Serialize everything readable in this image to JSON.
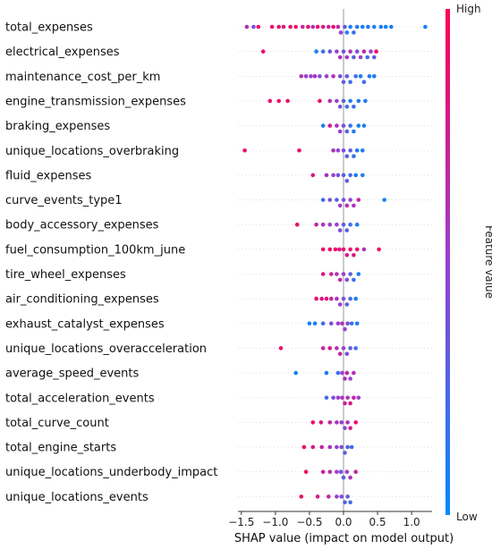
{
  "chart_data": {
    "type": "scatter",
    "subtype": "shap-beeswarm",
    "xlabel": "SHAP value (impact on model output)",
    "xlim": [
      -1.55,
      1.3
    ],
    "xticks": [
      -1.5,
      -1.0,
      -0.5,
      0.0,
      0.5,
      1.0
    ],
    "xtick_labels": [
      "−1.5",
      "−1.0",
      "−0.5",
      "0.0",
      "0.5",
      "1.0"
    ],
    "colorbar": {
      "title": "Feature value",
      "high_label": "High",
      "low_label": "Low",
      "high_color": "#ff0052",
      "low_color": "#008bfb"
    },
    "features": [
      {
        "name": "total_expenses",
        "points": [
          [
            -1.42,
            0.6
          ],
          [
            -1.32,
            0.4
          ],
          [
            -1.25,
            0.9
          ],
          [
            -1.05,
            0.9
          ],
          [
            -0.95,
            0.9
          ],
          [
            -0.88,
            0.8
          ],
          [
            -0.78,
            0.9
          ],
          [
            -0.7,
            0.9
          ],
          [
            -0.6,
            0.7
          ],
          [
            -0.52,
            0.9
          ],
          [
            -0.45,
            0.6
          ],
          [
            -0.38,
            0.9
          ],
          [
            -0.3,
            0.8
          ],
          [
            -0.22,
            0.7
          ],
          [
            -0.15,
            0.9
          ],
          [
            -0.08,
            0.7
          ],
          [
            -0.04,
            0.5
          ],
          [
            0.02,
            0.3
          ],
          [
            0.05,
            0.1
          ],
          [
            0.1,
            0.1
          ],
          [
            0.15,
            0.2
          ],
          [
            0.2,
            0.1
          ],
          [
            0.28,
            0.1
          ],
          [
            0.36,
            0.1
          ],
          [
            0.45,
            0.1
          ],
          [
            0.55,
            0.1
          ],
          [
            0.62,
            0.05
          ],
          [
            0.7,
            0.1
          ],
          [
            1.2,
            0.05
          ]
        ]
      },
      {
        "name": "electrical_expenses",
        "points": [
          [
            -1.18,
            0.9
          ],
          [
            -0.4,
            0.1
          ],
          [
            -0.3,
            0.2
          ],
          [
            -0.2,
            0.3
          ],
          [
            -0.1,
            0.5
          ],
          [
            -0.05,
            0.6
          ],
          [
            0.0,
            0.4
          ],
          [
            0.05,
            0.5
          ],
          [
            0.1,
            0.6
          ],
          [
            0.15,
            0.3
          ],
          [
            0.2,
            0.4
          ],
          [
            0.25,
            0.5
          ],
          [
            0.3,
            0.7
          ],
          [
            0.35,
            0.2
          ],
          [
            0.4,
            0.5
          ],
          [
            0.45,
            0.3
          ],
          [
            0.48,
            0.9
          ]
        ]
      },
      {
        "name": "maintenance_cost_per_km",
        "points": [
          [
            -0.62,
            0.6
          ],
          [
            -0.55,
            0.5
          ],
          [
            -0.48,
            0.5
          ],
          [
            -0.42,
            0.6
          ],
          [
            -0.35,
            0.4
          ],
          [
            -0.25,
            0.5
          ],
          [
            -0.15,
            0.6
          ],
          [
            -0.05,
            0.4
          ],
          [
            0.0,
            0.3
          ],
          [
            0.05,
            0.3
          ],
          [
            0.1,
            0.2
          ],
          [
            0.18,
            0.2
          ],
          [
            0.25,
            0.1
          ],
          [
            0.3,
            0.2
          ],
          [
            0.38,
            0.1
          ],
          [
            0.45,
            0.1
          ]
        ]
      },
      {
        "name": "engine_transmission_expenses",
        "points": [
          [
            -1.08,
            0.9
          ],
          [
            -0.95,
            0.9
          ],
          [
            -0.82,
            0.9
          ],
          [
            -0.35,
            0.9
          ],
          [
            -0.2,
            0.6
          ],
          [
            -0.1,
            0.5
          ],
          [
            -0.05,
            0.4
          ],
          [
            0.0,
            0.3
          ],
          [
            0.05,
            0.2
          ],
          [
            0.1,
            0.1
          ],
          [
            0.15,
            0.2
          ],
          [
            0.22,
            0.1
          ],
          [
            0.32,
            0.1
          ]
        ]
      },
      {
        "name": "braking_expenses",
        "points": [
          [
            -0.3,
            0.1
          ],
          [
            -0.2,
            0.8
          ],
          [
            -0.1,
            0.6
          ],
          [
            -0.05,
            0.5
          ],
          [
            0.0,
            0.4
          ],
          [
            0.05,
            0.3
          ],
          [
            0.1,
            0.2
          ],
          [
            0.15,
            0.1
          ],
          [
            0.22,
            0.1
          ],
          [
            0.3,
            0.1
          ]
        ]
      },
      {
        "name": "unique_locations_overbraking",
        "points": [
          [
            -1.45,
            0.9
          ],
          [
            -0.65,
            0.9
          ],
          [
            -0.15,
            0.6
          ],
          [
            -0.08,
            0.5
          ],
          [
            0.0,
            0.4
          ],
          [
            0.05,
            0.3
          ],
          [
            0.1,
            0.3
          ],
          [
            0.15,
            0.2
          ],
          [
            0.2,
            0.1
          ],
          [
            0.28,
            0.1
          ]
        ]
      },
      {
        "name": "fluid_expenses",
        "points": [
          [
            -0.45,
            0.8
          ],
          [
            -0.25,
            0.6
          ],
          [
            -0.15,
            0.5
          ],
          [
            -0.08,
            0.4
          ],
          [
            0.0,
            0.3
          ],
          [
            0.05,
            0.3
          ],
          [
            0.1,
            0.2
          ],
          [
            0.18,
            0.1
          ],
          [
            0.28,
            0.1
          ]
        ]
      },
      {
        "name": "curve_events_type1",
        "points": [
          [
            -0.3,
            0.2
          ],
          [
            -0.2,
            0.4
          ],
          [
            -0.1,
            0.3
          ],
          [
            -0.05,
            0.5
          ],
          [
            0.0,
            0.4
          ],
          [
            0.05,
            0.6
          ],
          [
            0.1,
            0.5
          ],
          [
            0.15,
            0.6
          ],
          [
            0.22,
            0.7
          ],
          [
            0.6,
            0.05
          ]
        ]
      },
      {
        "name": "body_accessory_expenses",
        "points": [
          [
            -0.68,
            0.9
          ],
          [
            -0.4,
            0.7
          ],
          [
            -0.3,
            0.6
          ],
          [
            -0.2,
            0.5
          ],
          [
            -0.1,
            0.5
          ],
          [
            -0.05,
            0.4
          ],
          [
            0.0,
            0.3
          ],
          [
            0.05,
            0.3
          ],
          [
            0.1,
            0.2
          ],
          [
            0.2,
            0.1
          ]
        ]
      },
      {
        "name": "fuel_consumption_100km_june",
        "points": [
          [
            -0.3,
            0.9
          ],
          [
            -0.2,
            0.9
          ],
          [
            -0.12,
            0.9
          ],
          [
            -0.06,
            0.8
          ],
          [
            0.0,
            0.9
          ],
          [
            0.05,
            0.8
          ],
          [
            0.1,
            0.9
          ],
          [
            0.15,
            0.8
          ],
          [
            0.2,
            0.9
          ],
          [
            0.3,
            0.6
          ],
          [
            0.52,
            0.9
          ]
        ]
      },
      {
        "name": "tire_wheel_expenses",
        "points": [
          [
            -0.3,
            0.8
          ],
          [
            -0.18,
            0.7
          ],
          [
            -0.1,
            0.6
          ],
          [
            -0.05,
            0.7
          ],
          [
            0.0,
            0.5
          ],
          [
            0.05,
            0.4
          ],
          [
            0.1,
            0.3
          ],
          [
            0.15,
            0.2
          ],
          [
            0.22,
            0.1
          ]
        ]
      },
      {
        "name": "air_conditioning_expenses",
        "points": [
          [
            -0.4,
            0.9
          ],
          [
            -0.32,
            0.8
          ],
          [
            -0.25,
            0.9
          ],
          [
            -0.18,
            0.7
          ],
          [
            -0.1,
            0.6
          ],
          [
            -0.05,
            0.5
          ],
          [
            0.0,
            0.4
          ],
          [
            0.05,
            0.3
          ],
          [
            0.1,
            0.2
          ],
          [
            0.18,
            0.1
          ]
        ]
      },
      {
        "name": "exhaust_catalyst_expenses",
        "points": [
          [
            -0.5,
            0.05
          ],
          [
            -0.42,
            0.1
          ],
          [
            -0.3,
            0.2
          ],
          [
            -0.18,
            0.4
          ],
          [
            -0.08,
            0.5
          ],
          [
            -0.02,
            0.6
          ],
          [
            0.02,
            0.5
          ],
          [
            0.06,
            0.4
          ],
          [
            0.12,
            0.2
          ],
          [
            0.2,
            0.1
          ]
        ]
      },
      {
        "name": "unique_locations_overacceleration",
        "points": [
          [
            -0.92,
            0.9
          ],
          [
            -0.3,
            0.7
          ],
          [
            -0.2,
            0.8
          ],
          [
            -0.1,
            0.6
          ],
          [
            -0.05,
            0.7
          ],
          [
            0.0,
            0.5
          ],
          [
            0.05,
            0.4
          ],
          [
            0.1,
            0.3
          ],
          [
            0.18,
            0.2
          ]
        ]
      },
      {
        "name": "average_speed_events",
        "points": [
          [
            -0.7,
            0.05
          ],
          [
            -0.25,
            0.1
          ],
          [
            -0.08,
            0.2
          ],
          [
            -0.02,
            0.5
          ],
          [
            0.02,
            0.6
          ],
          [
            0.05,
            0.7
          ],
          [
            0.1,
            0.5
          ],
          [
            0.15,
            0.6
          ]
        ]
      },
      {
        "name": "total_acceleration_events",
        "points": [
          [
            -0.25,
            0.2
          ],
          [
            -0.15,
            0.4
          ],
          [
            -0.08,
            0.5
          ],
          [
            -0.02,
            0.6
          ],
          [
            0.02,
            0.7
          ],
          [
            0.06,
            0.6
          ],
          [
            0.1,
            0.8
          ],
          [
            0.15,
            0.7
          ],
          [
            0.22,
            0.5
          ]
        ]
      },
      {
        "name": "total_curve_count",
        "points": [
          [
            -0.45,
            0.9
          ],
          [
            -0.33,
            0.8
          ],
          [
            -0.2,
            0.7
          ],
          [
            -0.1,
            0.6
          ],
          [
            -0.03,
            0.5
          ],
          [
            0.02,
            0.4
          ],
          [
            0.06,
            0.6
          ],
          [
            0.1,
            0.8
          ],
          [
            0.18,
            0.9
          ]
        ]
      },
      {
        "name": "total_engine_starts",
        "points": [
          [
            -0.58,
            0.9
          ],
          [
            -0.45,
            0.8
          ],
          [
            -0.32,
            0.7
          ],
          [
            -0.2,
            0.6
          ],
          [
            -0.1,
            0.5
          ],
          [
            -0.03,
            0.4
          ],
          [
            0.02,
            0.3
          ],
          [
            0.06,
            0.3
          ],
          [
            0.12,
            0.2
          ]
        ]
      },
      {
        "name": "unique_locations_underbody_impact",
        "points": [
          [
            -0.55,
            0.9
          ],
          [
            -0.3,
            0.7
          ],
          [
            -0.2,
            0.6
          ],
          [
            -0.1,
            0.5
          ],
          [
            -0.04,
            0.4
          ],
          [
            0.0,
            0.3
          ],
          [
            0.05,
            0.5
          ],
          [
            0.1,
            0.6
          ],
          [
            0.18,
            0.7
          ]
        ]
      },
      {
        "name": "unique_locations_events",
        "points": [
          [
            -0.62,
            0.9
          ],
          [
            -0.38,
            0.8
          ],
          [
            -0.22,
            0.7
          ],
          [
            -0.1,
            0.5
          ],
          [
            -0.03,
            0.4
          ],
          [
            0.02,
            0.3
          ],
          [
            0.06,
            0.3
          ],
          [
            0.1,
            0.2
          ]
        ]
      }
    ]
  }
}
